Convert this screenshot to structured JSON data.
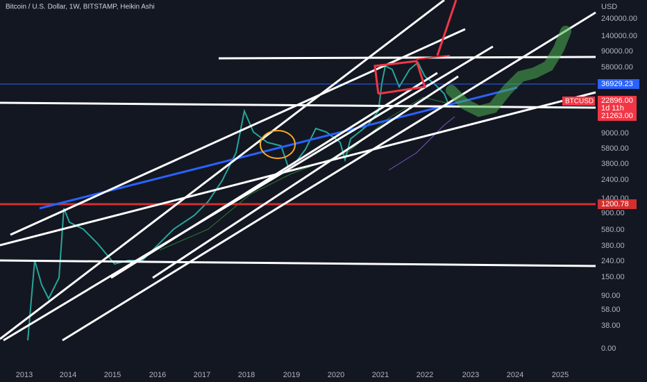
{
  "header": {
    "title": "Bitcoin / U.S. Dollar, 1W, BITSTAMP, Heikin Ashi"
  },
  "price_axis": {
    "unit": "USD",
    "labels": [
      "240000.00",
      "140000.00",
      "90000.00",
      "58000.00",
      "9000.00",
      "5800.00",
      "3800.00",
      "2400.00",
      "1400.00",
      "900.00",
      "580.00",
      "380.00",
      "240.00",
      "150.00",
      "90.00",
      "58.00",
      "38.00",
      "0.00"
    ]
  },
  "tags": {
    "blue_level": "36929.23",
    "symbol": "BTCUSD",
    "last_price": "22896.00",
    "countdown": "1d 11h",
    "low_price": "21263.00",
    "red_level": "1200.78"
  },
  "time_axis": {
    "labels": [
      "2013",
      "2014",
      "2015",
      "2016",
      "2017",
      "2018",
      "2019",
      "2020",
      "2021",
      "2022",
      "2023",
      "2024",
      "2025"
    ]
  }
}
